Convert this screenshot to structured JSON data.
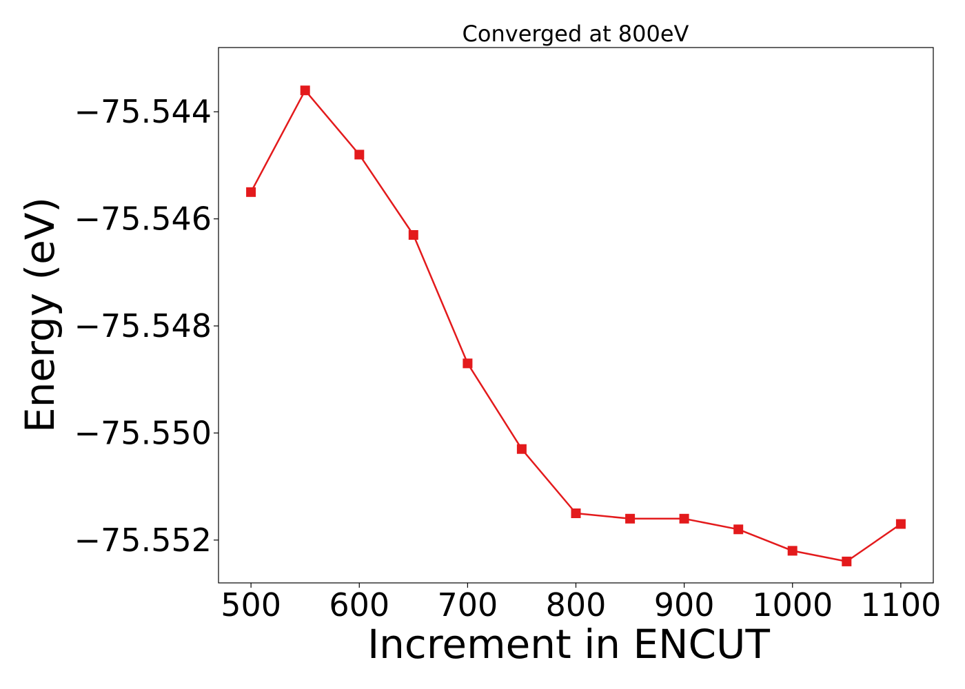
{
  "chart_data": {
    "type": "line",
    "title": "Converged at 800eV",
    "xlabel": "Increment in ENCUT",
    "ylabel": "Energy (eV)",
    "xlim": [
      470,
      1130
    ],
    "ylim": [
      -75.5528,
      -75.5428
    ],
    "x_ticks": [
      500,
      600,
      700,
      800,
      900,
      1000,
      1100
    ],
    "x_tick_labels": [
      "500",
      "600",
      "700",
      "800",
      "900",
      "1000",
      "1100"
    ],
    "y_ticks": [
      -75.544,
      -75.546,
      -75.548,
      -75.55,
      -75.552
    ],
    "y_tick_labels": [
      "−75.544",
      "−75.546",
      "−75.548",
      "−75.550",
      "−75.552"
    ],
    "grid": false,
    "series": [
      {
        "color": "#e31a1c",
        "marker": "square",
        "x": [
          500,
          550,
          600,
          650,
          700,
          750,
          800,
          850,
          900,
          950,
          1000,
          1050,
          1100
        ],
        "y": [
          -75.5455,
          -75.5436,
          -75.5448,
          -75.5463,
          -75.5487,
          -75.5503,
          -75.5515,
          -75.5516,
          -75.5516,
          -75.5518,
          -75.5522,
          -75.5524,
          -75.5517
        ]
      }
    ]
  }
}
